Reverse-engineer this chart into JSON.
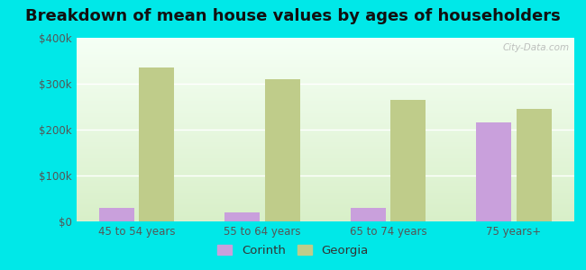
{
  "title": "Breakdown of mean house values by ages of householders",
  "categories": [
    "45 to 54 years",
    "55 to 64 years",
    "65 to 74 years",
    "75 years+"
  ],
  "corinth_values": [
    30000,
    20000,
    30000,
    215000
  ],
  "georgia_values": [
    335000,
    310000,
    265000,
    245000
  ],
  "corinth_color": "#c9a0dc",
  "georgia_color": "#bfcc8a",
  "background_outer": "#00e8e8",
  "background_inner_bottom": "#d8efc8",
  "background_inner_top": "#f5fff5",
  "ylim": [
    0,
    400000
  ],
  "yticks": [
    0,
    100000,
    200000,
    300000,
    400000
  ],
  "ytick_labels": [
    "$0",
    "$100k",
    "$200k",
    "$300k",
    "$400k"
  ],
  "title_fontsize": 13,
  "legend_labels": [
    "Corinth",
    "Georgia"
  ],
  "watermark": "City-Data.com",
  "bar_width": 0.28,
  "bar_gap": 0.04
}
